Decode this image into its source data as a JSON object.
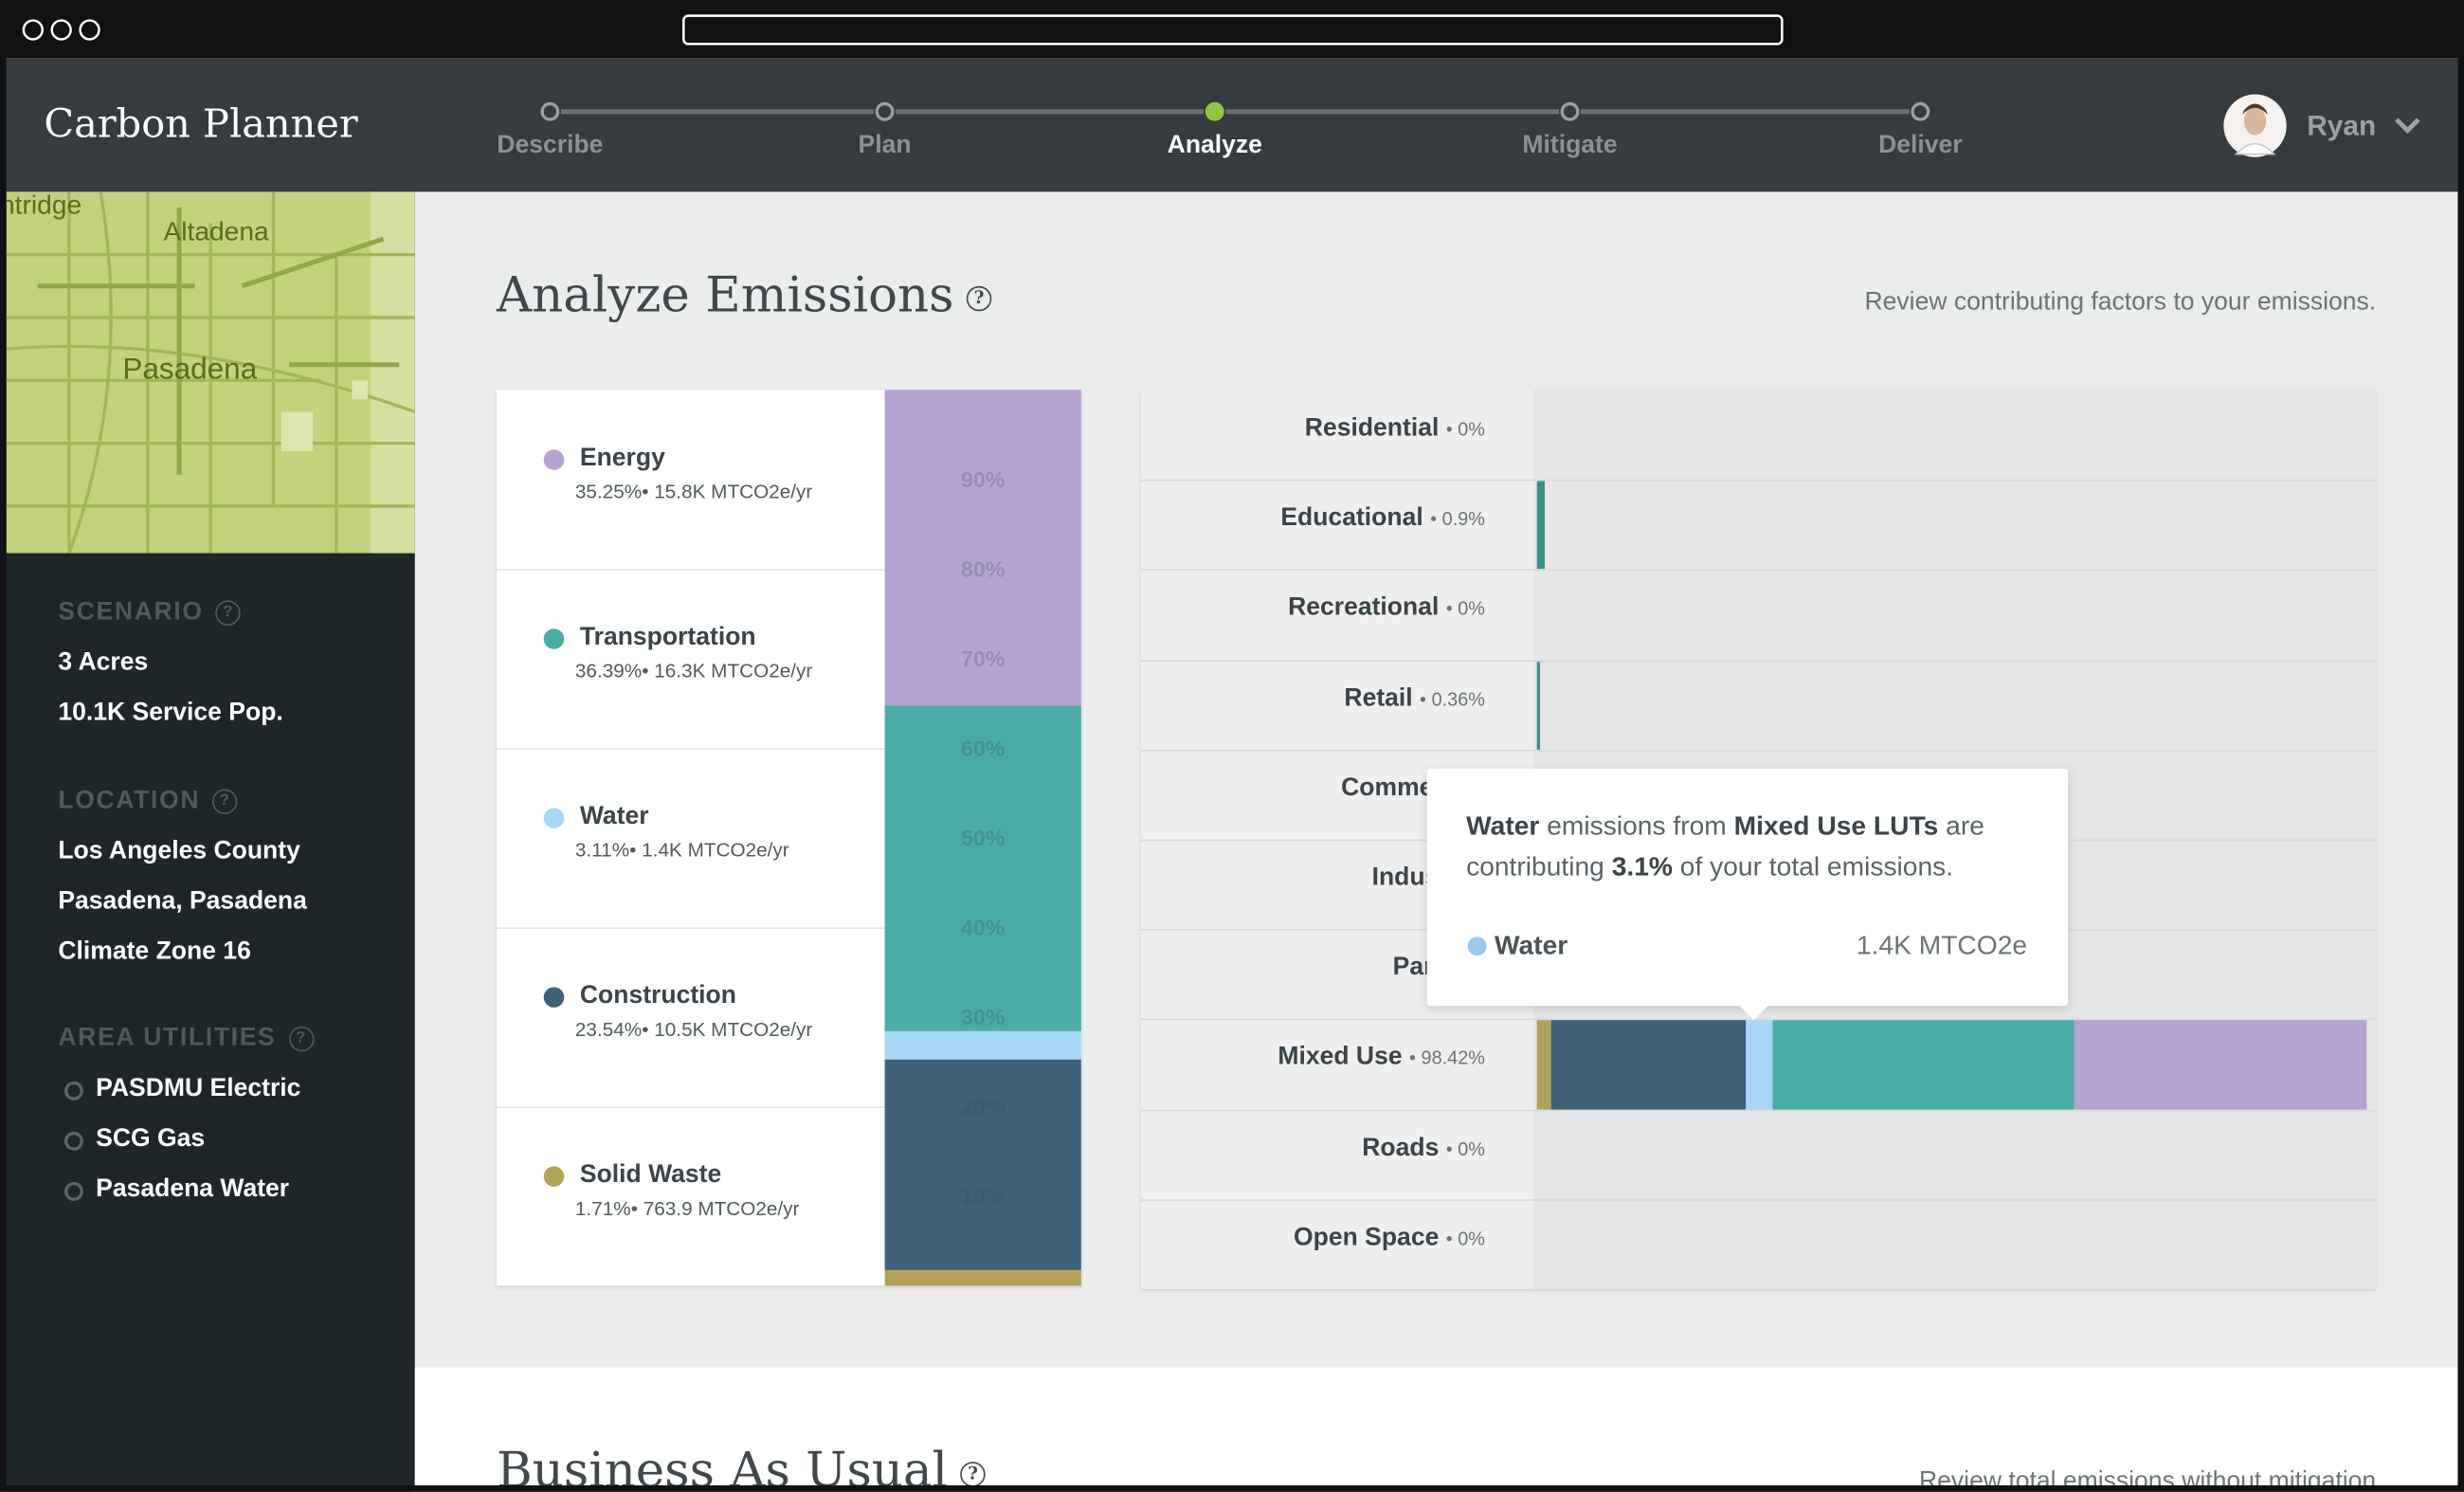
{
  "header": {
    "app_name": "Carbon Planner",
    "steps": [
      "Describe",
      "Plan",
      "Analyze",
      "Mitigate",
      "Deliver"
    ],
    "active_step": 2,
    "user": "Ryan"
  },
  "map": {
    "labels": [
      "ntridge",
      "Altadena",
      "Pasadena"
    ]
  },
  "sidebar": {
    "sections": [
      {
        "title": "SCENARIO",
        "items": [
          "3 Acres",
          "10.1K Service Pop."
        ]
      },
      {
        "title": "LOCATION",
        "items": [
          "Los Angeles County",
          "Pasadena, Pasadena",
          "Climate Zone 16"
        ]
      },
      {
        "title": "AREA UTILITIES",
        "items": [
          "PASDMU Electric",
          "SCG Gas",
          "Pasadena Water"
        ]
      }
    ]
  },
  "main": {
    "title": "Analyze Emissions",
    "subtitle": "Review contributing factors to your emissions.",
    "categories": [
      {
        "name": "Energy",
        "color": "#b5a3d3",
        "share": 35.25,
        "share_label": "35.25%",
        "amount": "15.8K MTCO2e/yr"
      },
      {
        "name": "Transportation",
        "color": "#4aaca7",
        "share": 36.39,
        "share_label": "36.39%",
        "amount": "16.3K MTCO2e/yr"
      },
      {
        "name": "Water",
        "color": "#a8d6f6",
        "share": 3.11,
        "share_label": "3.11%",
        "amount": "1.4K MTCO2e/yr"
      },
      {
        "name": "Construction",
        "color": "#3e6178",
        "share": 23.54,
        "share_label": "23.54%",
        "amount": "10.5K MTCO2e/yr"
      },
      {
        "name": "Solid Waste",
        "color": "#b2a25c",
        "share": 1.71,
        "share_label": "1.71%",
        "amount": "763.9 MTCO2e/yr"
      }
    ],
    "stack_ticks": [
      {
        "value": 90,
        "label": "90%"
      },
      {
        "value": 80,
        "label": "80%"
      },
      {
        "value": 70,
        "label": "70%"
      },
      {
        "value": 60,
        "label": "60%"
      },
      {
        "value": 50,
        "label": "50%"
      },
      {
        "value": 40,
        "label": "40%"
      },
      {
        "value": 30,
        "label": "30%"
      },
      {
        "value": 20,
        "label": "20%"
      },
      {
        "value": 10,
        "label": "10%"
      }
    ],
    "land_uses": [
      {
        "name": "Residential",
        "share": 0,
        "share_label": "0%"
      },
      {
        "name": "Educational",
        "share": 0.9,
        "share_label": "0.9%"
      },
      {
        "name": "Recreational",
        "share": 0,
        "share_label": "0%"
      },
      {
        "name": "Retail",
        "share": 0.36,
        "share_label": "0.36%"
      },
      {
        "name": "Commercial",
        "share": null,
        "share_label": null
      },
      {
        "name": "Industrial",
        "share": null,
        "share_label": null
      },
      {
        "name": "Parking",
        "share": null,
        "share_label": null
      },
      {
        "name": "Mixed Use",
        "share": 98.42,
        "share_label": "98.42%"
      },
      {
        "name": "Roads",
        "share": 0,
        "share_label": "0%"
      },
      {
        "name": "Open Space",
        "share": 0,
        "share_label": "0%"
      }
    ],
    "highlighted_land_use": 7,
    "tooltip": {
      "category": "Water",
      "text1": "emissions from",
      "subject": "Mixed Use LUTs",
      "text2": "are contributing",
      "share": "3.1%",
      "text3": "of your total emissions.",
      "legend_name": "Water",
      "legend_value": "1.4K MTCO2e"
    }
  },
  "next_section": {
    "title": "Business As Usual",
    "subtitle": "Review total emissions without mitigation"
  }
}
